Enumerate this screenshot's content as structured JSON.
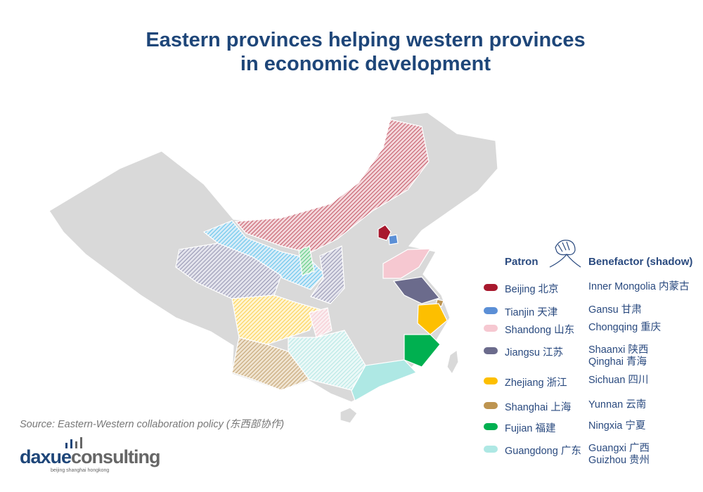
{
  "title_line1": "Eastern provinces helping western provinces",
  "title_line2": "in economic development",
  "legend": {
    "patron_header": "Patron",
    "benefactor_header": "Benefactor (shadow)",
    "icon": "handshake-icon",
    "rows": [
      {
        "patron": "Beijing 北京",
        "benefactor": "Inner Mongolia 内蒙古",
        "color": "#a8192e"
      },
      {
        "patron": "Tianjin 天津",
        "benefactor": "Gansu 甘肃",
        "color": "#5b8fd6"
      },
      {
        "patron": "Shandong 山东",
        "benefactor": "Chongqing 重庆",
        "color": "#f6c8d1"
      },
      {
        "patron": "Jiangsu 江苏",
        "benefactor": "Shaanxi 陕西",
        "benefactor2": "Qinghai 青海",
        "color": "#6b6b8c"
      },
      {
        "patron": "Zhejiang 浙江",
        "benefactor": "Sichuan 四川",
        "color": "#fdbf00"
      },
      {
        "patron": "Shanghai 上海",
        "benefactor": "Yunnan 云南",
        "color": "#bd9450"
      },
      {
        "patron": "Fujian 福建",
        "benefactor": "Ningxia 宁夏",
        "color": "#00b050"
      },
      {
        "patron": "Guangdong 广东",
        "benefactor": "Guangxi 广西",
        "benefactor2": "Guizhou 贵州",
        "color": "#aee8e4"
      }
    ]
  },
  "source": "Source: Eastern-Western collaboration policy (东西部协作)",
  "logo": {
    "part1": "daxue",
    "part2": "consulting",
    "tagline": "beijing shanghai hongkong"
  },
  "colors": {
    "title": "#1e4679",
    "base_map": "#d9d9d9",
    "text": "#2a4a7f"
  }
}
